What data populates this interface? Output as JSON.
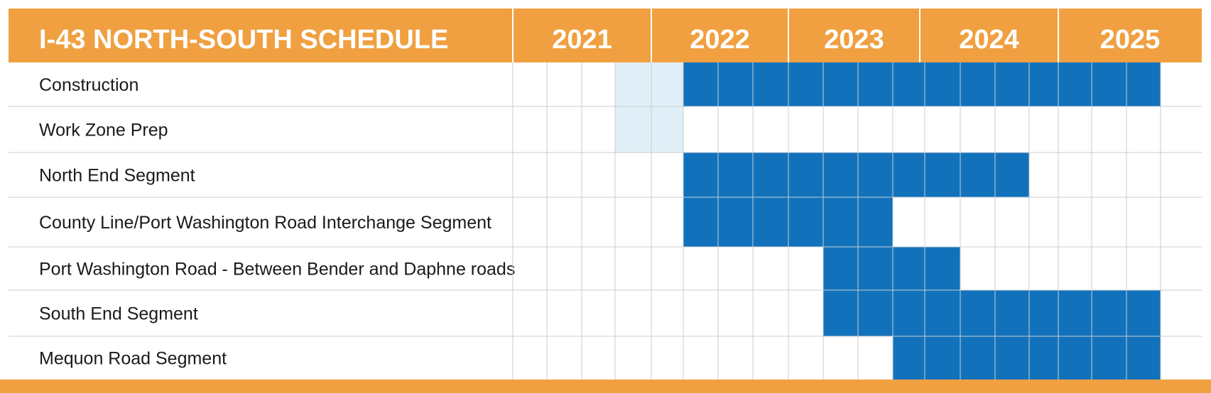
{
  "title": "I-43 NORTH-SOUTH SCHEDULE",
  "colors": {
    "header": "#F0A040",
    "active": "#1172BB",
    "light": "#E0EFF7",
    "grid": "#C8CDD2",
    "footer": "#F0A040"
  },
  "chart_data": {
    "type": "gantt",
    "title": "I-43 NORTH-SOUTH SCHEDULE",
    "years": [
      "2021",
      "2022",
      "2023",
      "2024",
      "2025"
    ],
    "periods_per_year": 4,
    "tasks": [
      {
        "label": "Construction",
        "active": [
          [
            5,
            18
          ]
        ],
        "light": [
          [
            3,
            4
          ]
        ]
      },
      {
        "label": "Work Zone Prep",
        "active": [],
        "light": [
          [
            3,
            4
          ]
        ]
      },
      {
        "label": "North End Segment",
        "active": [
          [
            5,
            14
          ]
        ],
        "light": []
      },
      {
        "label": "County Line/Port Washington Road Interchange Segment",
        "active": [
          [
            5,
            10
          ]
        ],
        "light": []
      },
      {
        "label": "Port Washington Road - Between Bender and Daphne roads",
        "active": [
          [
            9,
            12
          ]
        ],
        "light": []
      },
      {
        "label": "South End Segment",
        "active": [
          [
            9,
            18
          ]
        ],
        "light": []
      },
      {
        "label": "Mequon Road Segment",
        "active": [
          [
            11,
            18
          ]
        ],
        "light": []
      }
    ]
  }
}
